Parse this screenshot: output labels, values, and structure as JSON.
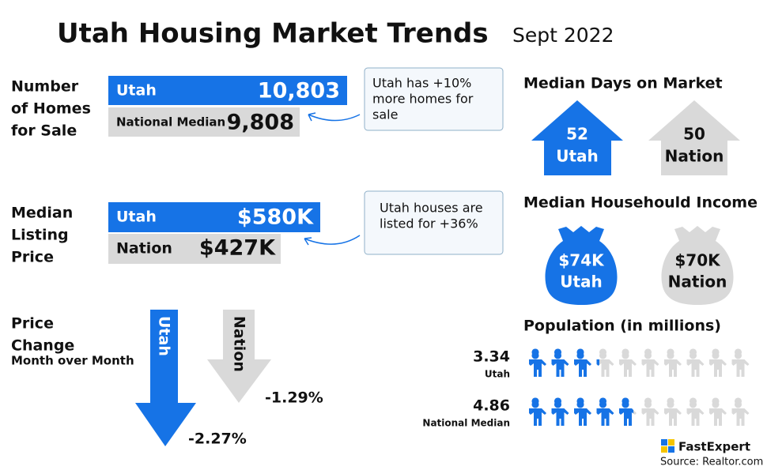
{
  "header": {
    "title": "Utah Housing Market Trends",
    "date": "Sept 2022"
  },
  "homes_for_sale": {
    "label": [
      "Number",
      "of Homes",
      "for Sale"
    ],
    "utah_label": "Utah",
    "utah_value": "10,803",
    "national_label": "National Median",
    "national_value": "9,808",
    "note": [
      "Utah has +10%",
      "more homes for",
      "sale"
    ]
  },
  "listing_price": {
    "label": [
      "Median",
      "Listing",
      "Price"
    ],
    "utah_label": "Utah",
    "utah_value": "$580K",
    "national_label": "Nation",
    "national_value": "$427K",
    "note": [
      "Utah houses are",
      "listed for +36%"
    ]
  },
  "price_change": {
    "label": [
      "Price",
      "Change"
    ],
    "sublabel": "Month over Month",
    "utah_label": "Utah",
    "utah_value": "-2.27%",
    "national_label": "Nation",
    "national_value": "-1.29%"
  },
  "days_on_market": {
    "title": "Median Days on Market",
    "utah_value": "52",
    "utah_label": "Utah",
    "national_value": "50",
    "national_label": "Nation"
  },
  "income": {
    "title": "Median Househould Income",
    "utah_value": "$74K",
    "utah_label": "Utah",
    "national_value": "$70K",
    "national_label": "Nation"
  },
  "population": {
    "title": "Population (in millions)",
    "rows": [
      {
        "value": 3.34,
        "label": "Utah"
      },
      {
        "value": 4.86,
        "label": "National Median"
      }
    ]
  },
  "footer": {
    "brand": "FastExpert",
    "source": "Source: Realtor.com"
  }
}
